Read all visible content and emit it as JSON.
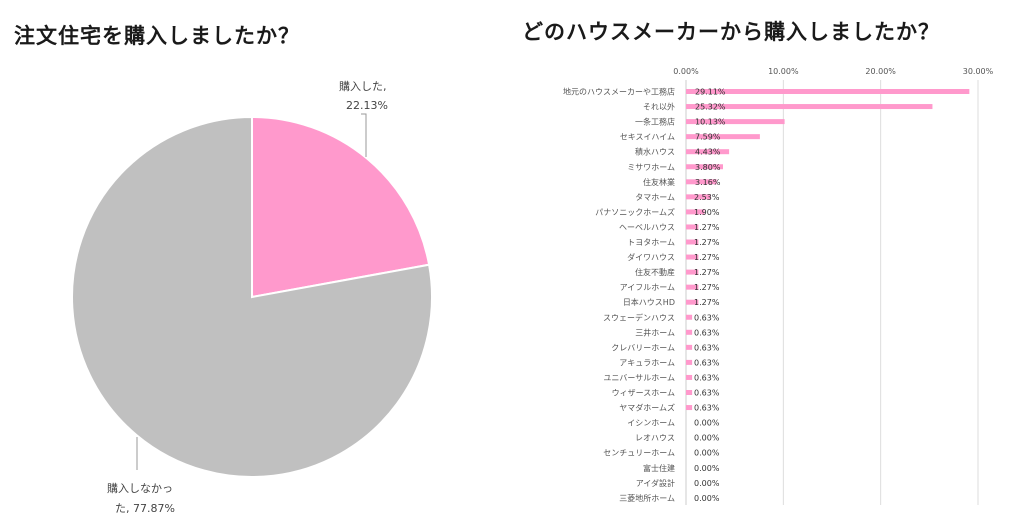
{
  "left_title": "注文住宅を購入しましたか？",
  "right_title": "どのハウスメーカーから購入しましたか？",
  "colors": {
    "pink": "#ff99cc",
    "gray": "#c0c0c0",
    "grid": "#dddddd"
  },
  "chart_data": [
    {
      "type": "pie",
      "title": "注文住宅を購入しましたか？",
      "slices": [
        {
          "label_line1": "購入した,",
          "label_line2": "22.13%",
          "value": 22.13,
          "color": "#ff99cc"
        },
        {
          "label_line1": "購入しなかっ",
          "label_line2": "た, 77.87%",
          "value": 77.87,
          "color": "#c0c0c0"
        }
      ]
    },
    {
      "type": "bar",
      "orientation": "horizontal",
      "title": "どのハウスメーカーから購入しましたか？",
      "xlim": [
        0,
        30
      ],
      "xticks": [
        "0.00%",
        "10.00%",
        "20.00%",
        "30.00%"
      ],
      "categories": [
        "地元のハウスメーカーや工務店",
        "それ以外",
        "一条工務店",
        "セキスイハイム",
        "積水ハウス",
        "ミサワホーム",
        "住友林業",
        "タマホーム",
        "パナソニックホームズ",
        "ヘーベルハウス",
        "トヨタホーム",
        "ダイワハウス",
        "住友不動産",
        "アイフルホーム",
        "日本ハウスHD",
        "スウェーデンハウス",
        "三井ホーム",
        "クレバリーホーム",
        "アキュラホーム",
        "ユニバーサルホーム",
        "ウィザースホーム",
        "ヤマダホームズ",
        "イシンホーム",
        "レオハウス",
        "センチュリーホーム",
        "富士住建",
        "アイダ設計",
        "三菱地所ホーム"
      ],
      "values": [
        29.11,
        25.32,
        10.13,
        7.59,
        4.43,
        3.8,
        3.16,
        2.53,
        1.9,
        1.27,
        1.27,
        1.27,
        1.27,
        1.27,
        1.27,
        0.63,
        0.63,
        0.63,
        0.63,
        0.63,
        0.63,
        0.63,
        0.0,
        0.0,
        0.0,
        0.0,
        0.0,
        0.0
      ],
      "labels": [
        "29.11%",
        "25.32%",
        "10.13%",
        "7.59%",
        "4.43%",
        "3.80%",
        "3.16%",
        "2.53%",
        "1.90%",
        "1.27%",
        "1.27%",
        "1.27%",
        "1.27%",
        "1.27%",
        "1.27%",
        "0.63%",
        "0.63%",
        "0.63%",
        "0.63%",
        "0.63%",
        "0.63%",
        "0.63%",
        "0.00%",
        "0.00%",
        "0.00%",
        "0.00%",
        "0.00%",
        "0.00%"
      ],
      "color": "#ff99cc",
      "grid": true
    }
  ]
}
